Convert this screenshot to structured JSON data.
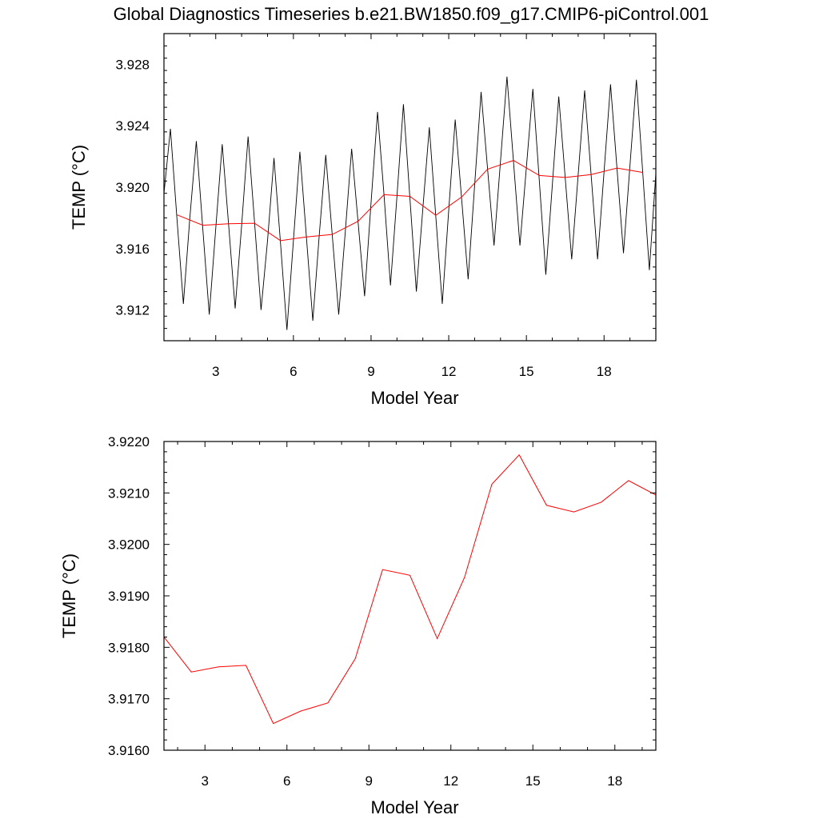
{
  "figure": {
    "title": "Global Diagnostics Timeseries b.e21.BW1850.f09_g17.CMIP6-piControl.001"
  },
  "colors": {
    "monthly_line": "#000000",
    "annual_line": "#ff0000",
    "axes": "#000000",
    "background": "#ffffff"
  },
  "chart_data": [
    {
      "type": "line",
      "title": "Global Diagnostics Timeseries b.e21.BW1850.f09_g17.CMIP6-piControl.001",
      "xlabel": "Model Year",
      "ylabel": "TEMP (°C)",
      "xlim": [
        1,
        20
      ],
      "ylim": [
        3.91,
        3.93
      ],
      "xticks": [
        3,
        6,
        9,
        12,
        15,
        18
      ],
      "xtick_labels": [
        "3",
        "6",
        "9",
        "12",
        "15",
        "18"
      ],
      "yticks": [
        3.912,
        3.916,
        3.92,
        3.924,
        3.928
      ],
      "ytick_labels": [
        "3.912",
        "3.916",
        "3.920",
        "3.924",
        "3.928"
      ],
      "grid": false,
      "series": [
        {
          "kind": "monthly",
          "color": "#000000",
          "x": [
            1.0,
            1.25,
            1.5,
            1.75,
            2.0,
            2.25,
            2.5,
            2.75,
            3.0,
            3.25,
            3.5,
            3.75,
            4.0,
            4.25,
            4.5,
            4.75,
            5.0,
            5.25,
            5.5,
            5.75,
            6.0,
            6.25,
            6.5,
            6.75,
            7.0,
            7.25,
            7.5,
            7.75,
            8.0,
            8.25,
            8.5,
            8.75,
            9.0,
            9.25,
            9.5,
            9.75,
            10.0,
            10.25,
            10.5,
            10.75,
            11.0,
            11.25,
            11.5,
            11.75,
            12.0,
            12.25,
            12.5,
            12.75,
            13.0,
            13.25,
            13.5,
            13.75,
            14.0,
            14.25,
            14.5,
            14.75,
            15.0,
            15.25,
            15.5,
            15.75,
            16.0,
            16.25,
            16.5,
            16.75,
            17.0,
            17.25,
            17.5,
            17.75,
            18.0,
            18.25,
            18.5,
            18.75,
            19.0,
            19.25,
            19.5,
            19.75,
            20.0
          ],
          "values": [
            3.9196,
            3.9238,
            3.918,
            3.9124,
            3.918,
            3.923,
            3.9173,
            3.9117,
            3.9173,
            3.9228,
            3.9175,
            3.9121,
            3.9175,
            3.9233,
            3.9177,
            3.912,
            3.9165,
            3.9219,
            3.9164,
            3.9107,
            3.9165,
            3.9223,
            3.9168,
            3.9113,
            3.9169,
            3.9221,
            3.9169,
            3.9117,
            3.917,
            3.9225,
            3.9177,
            3.9129,
            3.919,
            3.9249,
            3.9195,
            3.9136,
            3.9194,
            3.9254,
            3.9193,
            3.9132,
            3.9186,
            3.9239,
            3.9181,
            3.9124,
            3.9185,
            3.9244,
            3.9192,
            3.914,
            3.9201,
            3.9262,
            3.9212,
            3.9162,
            3.9217,
            3.9272,
            3.9217,
            3.9162,
            3.9213,
            3.9264,
            3.9204,
            3.9143,
            3.9201,
            3.9259,
            3.9206,
            3.9153,
            3.9208,
            3.9263,
            3.9208,
            3.9153,
            3.921,
            3.9267,
            3.9212,
            3.9157,
            3.9214,
            3.927,
            3.9208,
            3.9146,
            3.9209
          ]
        },
        {
          "kind": "annual",
          "color": "#ff0000",
          "x": [
            1.5,
            2.5,
            3.5,
            4.5,
            5.5,
            6.5,
            7.5,
            8.5,
            9.5,
            10.5,
            11.5,
            12.5,
            13.5,
            14.5,
            15.5,
            16.5,
            17.5,
            18.5,
            19.5
          ],
          "values": [
            3.9182,
            3.91752,
            3.91762,
            3.91765,
            3.91652,
            3.91676,
            3.91692,
            3.91778,
            3.91951,
            3.9194,
            3.91817,
            3.91936,
            3.92117,
            3.92174,
            3.92076,
            3.92063,
            3.92082,
            3.92124,
            3.92096
          ]
        }
      ]
    },
    {
      "type": "line",
      "title": "",
      "xlabel": "Model Year",
      "ylabel": "TEMP (°C)",
      "xlim": [
        1.5,
        19.5
      ],
      "ylim": [
        3.916,
        3.922
      ],
      "xticks": [
        3,
        6,
        9,
        12,
        15,
        18
      ],
      "xtick_labels": [
        "3",
        "6",
        "9",
        "12",
        "15",
        "18"
      ],
      "yticks": [
        3.916,
        3.917,
        3.918,
        3.919,
        3.92,
        3.921,
        3.922
      ],
      "ytick_labels": [
        "3.9160",
        "3.9170",
        "3.9180",
        "3.9190",
        "3.9200",
        "3.9210",
        "3.9220"
      ],
      "grid": false,
      "series": [
        {
          "kind": "annual",
          "color": "#ff0000",
          "x": [
            1.5,
            2.5,
            3.5,
            4.5,
            5.5,
            6.5,
            7.5,
            8.5,
            9.5,
            10.5,
            11.5,
            12.5,
            13.5,
            14.5,
            15.5,
            16.5,
            17.5,
            18.5,
            19.5
          ],
          "values": [
            3.9182,
            3.91752,
            3.91762,
            3.91765,
            3.91652,
            3.91676,
            3.91692,
            3.91778,
            3.91951,
            3.9194,
            3.91817,
            3.91936,
            3.92117,
            3.92174,
            3.92076,
            3.92063,
            3.92082,
            3.92124,
            3.92096
          ]
        }
      ]
    }
  ]
}
